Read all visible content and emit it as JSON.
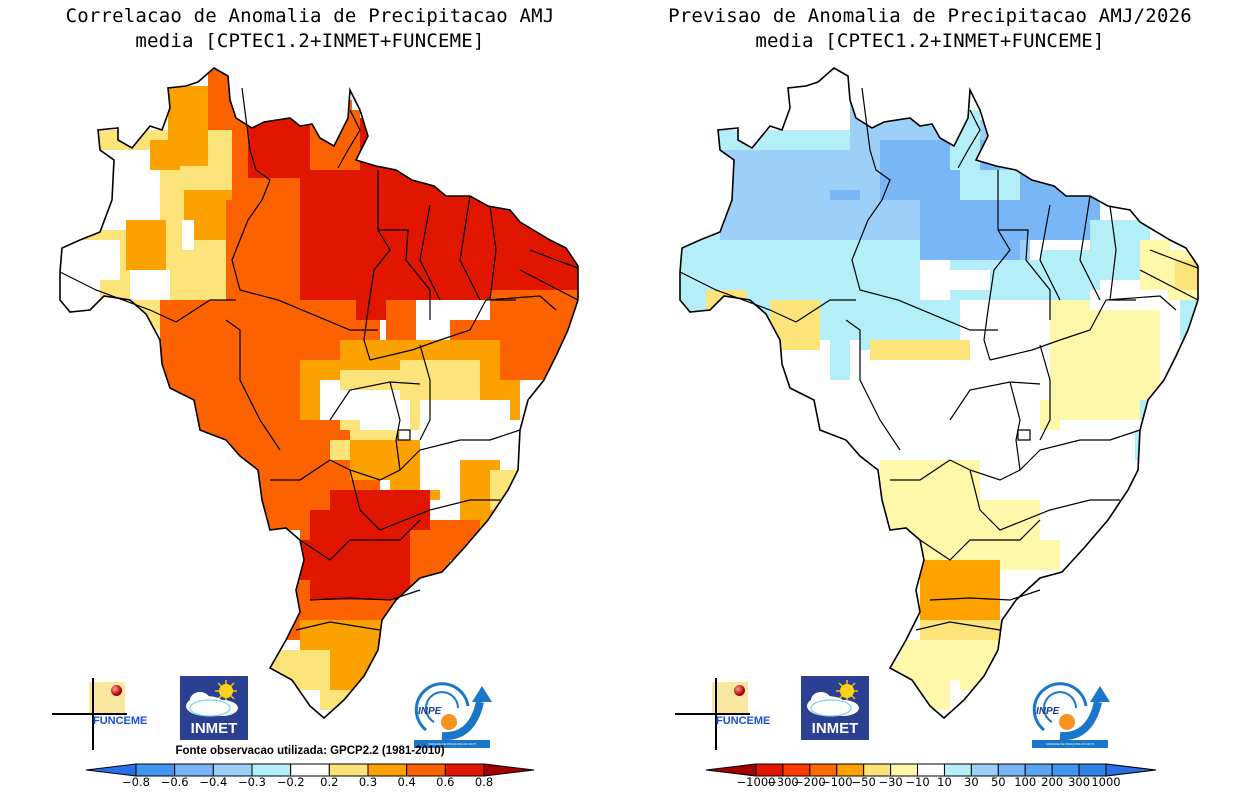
{
  "panels": [
    {
      "id": "correlation",
      "title_line1": "Correlacao de Anomalia de Precipitacao AMJ",
      "title_line2": "media [CPTEC1.2+INMET+FUNCEME]",
      "source_note": "Fonte observacao utilizada: GPCP2.2 (1981-2010)",
      "colorbar": {
        "labels": [
          "-0.8",
          "-0.6",
          "-0.4",
          "-0.3",
          "-0.2",
          "0.2",
          "0.3",
          "0.4",
          "0.6",
          "0.8"
        ],
        "colors": [
          "#2a6fe6",
          "#3f95f0",
          "#78b6f6",
          "#9dd0f8",
          "#b4eef8",
          "#ffffff",
          "#fde47a",
          "#fba100",
          "#fc6200",
          "#e01600",
          "#a30000"
        ]
      },
      "field": {
        "description": "Correlation class index per grid cell (0=below -0.8 .. 10=above 0.8); white = -0.2..0.2",
        "dominant_classes": {
          "north_amazon_para_maranhao_northeast": "0.6-0.8",
          "mato_grosso_goias_mato_grosso_do_sul_parana": "0.4-0.6",
          "parana_sao_paulo_core": "0.6-0.8",
          "western_amazonas_acre": "-0.2-0.2 / 0.2-0.3",
          "minas_gerais_bahia_south": "-0.2-0.2",
          "rio_grande_do_sul": "0.2-0.4"
        }
      },
      "logos": [
        "FUNCEME",
        "INMET",
        "INPE"
      ]
    },
    {
      "id": "forecast",
      "title_line1": "Previsao de Anomalia de Precipitacao AMJ/2026",
      "title_line2": "media [CPTEC1.2+INMET+FUNCEME]",
      "colorbar": {
        "labels": [
          "-1000",
          "-300",
          "-200",
          "-100",
          "-50",
          "-30",
          "-10",
          "10",
          "30",
          "50",
          "100",
          "200",
          "300",
          "1000"
        ],
        "colors": [
          "#a30000",
          "#e01600",
          "#ff3a00",
          "#ff6a00",
          "#ffa200",
          "#fde47a",
          "#fff7aa",
          "#ffffff",
          "#b4eef8",
          "#9dd0f8",
          "#78b6f6",
          "#5aa5f0",
          "#3f95f0",
          "#2f82e8",
          "#2a6fe6"
        ]
      },
      "field": {
        "description": "Precipitation anomaly class (mm) per grid cell",
        "dominant_classes": {
          "amazonas_roraima_para_amapa": "10-100",
          "central_brazil": "-10-10",
          "bahia_minas_interior": "-30--10",
          "mato_grosso_do_sul_sao_paulo": "-50--10",
          "parana_santa_catarina": "-100--50",
          "rio_grande_do_norte_paraiba": "-50--30"
        }
      },
      "logos": [
        "FUNCEME",
        "INMET",
        "INPE"
      ]
    }
  ],
  "logos": {
    "funceme": "FUNCEME",
    "inmet": "INMET",
    "inpe": "INPE",
    "inpe_band": "UNIDADE DE PESQUISA DO MCTI"
  }
}
